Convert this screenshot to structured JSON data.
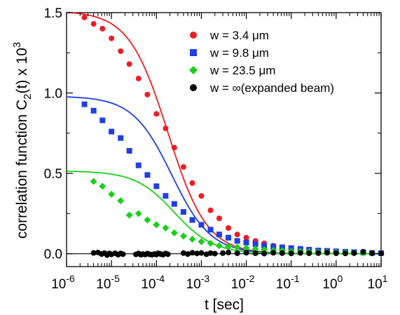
{
  "chart_data": {
    "type": "scatter",
    "xlabel": "t [sec]",
    "ylabel": "correlation function C",
    "ylabel_sub": "2",
    "ylabel_tail": "(t) x 10",
    "ylabel_sup": "3",
    "xscale": "log",
    "xlim": [
      1e-06,
      10
    ],
    "ylim": [
      -0.08,
      1.5
    ],
    "xticks": [
      {
        "value": 1e-06,
        "base": "10",
        "exp": "-6"
      },
      {
        "value": 1e-05,
        "base": "10",
        "exp": "-5"
      },
      {
        "value": 0.0001,
        "base": "10",
        "exp": "-4"
      },
      {
        "value": 0.001,
        "base": "10",
        "exp": "-3"
      },
      {
        "value": 0.01,
        "base": "10",
        "exp": "-2"
      },
      {
        "value": 0.1,
        "base": "10",
        "exp": "-1"
      },
      {
        "value": 1,
        "base": "10",
        "exp": "0"
      },
      {
        "value": 10,
        "base": "10",
        "exp": "1"
      }
    ],
    "yticks": [
      {
        "value": 0.0,
        "label": "0.0"
      },
      {
        "value": 0.5,
        "label": "0.5"
      },
      {
        "value": 1.0,
        "label": "1.0"
      },
      {
        "value": 1.5,
        "label": "1.5"
      }
    ],
    "legend_position": "top-right",
    "grid": false,
    "zero_line": true,
    "series": [
      {
        "name": "w = 3.4 μm",
        "color": "#ee1c24",
        "marker": "circle",
        "fit": {
          "A": 1.51,
          "tau": 0.00018
        },
        "points": [
          [
            2.5e-06,
            1.47
          ],
          [
            4e-06,
            1.43
          ],
          [
            6.3e-06,
            1.4
          ],
          [
            1e-05,
            1.34
          ],
          [
            1.6e-05,
            1.26
          ],
          [
            2.5e-05,
            1.18
          ],
          [
            4e-05,
            1.09
          ],
          [
            6.3e-05,
            0.99
          ],
          [
            0.0001,
            0.87
          ],
          [
            0.00016,
            0.78
          ],
          [
            0.00025,
            0.66
          ],
          [
            0.0004,
            0.54
          ],
          [
            0.00063,
            0.44
          ],
          [
            0.001,
            0.36
          ],
          [
            0.0016,
            0.27
          ],
          [
            0.0025,
            0.22
          ],
          [
            0.004,
            0.16
          ],
          [
            0.0063,
            0.12
          ],
          [
            0.01,
            0.1
          ],
          [
            0.016,
            0.08
          ],
          [
            0.025,
            0.065
          ],
          [
            0.04,
            0.05
          ],
          [
            0.063,
            0.04
          ],
          [
            0.1,
            0.035
          ],
          [
            0.16,
            0.03
          ],
          [
            0.25,
            0.025
          ],
          [
            0.4,
            0.02
          ],
          [
            0.63,
            0.018
          ],
          [
            1.0,
            0.015
          ],
          [
            1.6,
            0.012
          ],
          [
            2.5,
            0.01
          ],
          [
            4.0,
            0.008
          ],
          [
            6.3,
            0.005
          ],
          [
            10,
            0.003
          ]
        ]
      },
      {
        "name": "w = 9.8 μm",
        "color": "#1f3fe0",
        "marker": "square",
        "fit": {
          "A": 0.98,
          "tau": 0.00022
        },
        "points": [
          [
            2.5e-06,
            0.93
          ],
          [
            4e-06,
            0.89
          ],
          [
            6.3e-06,
            0.83
          ],
          [
            1e-05,
            0.76
          ],
          [
            1.6e-05,
            0.72
          ],
          [
            2.5e-05,
            0.64
          ],
          [
            4e-05,
            0.55
          ],
          [
            6.3e-05,
            0.49
          ],
          [
            0.0001,
            0.42
          ],
          [
            0.00016,
            0.36
          ],
          [
            0.00025,
            0.31
          ],
          [
            0.0004,
            0.26
          ],
          [
            0.00063,
            0.21
          ],
          [
            0.001,
            0.18
          ],
          [
            0.0016,
            0.15
          ],
          [
            0.0025,
            0.12
          ],
          [
            0.004,
            0.1
          ],
          [
            0.0063,
            0.08
          ],
          [
            0.01,
            0.07
          ],
          [
            0.016,
            0.06
          ],
          [
            0.025,
            0.05
          ],
          [
            0.04,
            0.045
          ],
          [
            0.063,
            0.04
          ],
          [
            0.1,
            0.035
          ],
          [
            0.16,
            0.03
          ],
          [
            0.25,
            0.025
          ],
          [
            0.4,
            0.02
          ],
          [
            0.63,
            0.018
          ],
          [
            1.0,
            0.015
          ],
          [
            1.6,
            0.012
          ],
          [
            2.5,
            0.01
          ],
          [
            4.0,
            0.008
          ],
          [
            6.3,
            0.005
          ],
          [
            10,
            0.004
          ]
        ]
      },
      {
        "name": "w = 23.5 μm",
        "color": "#19d019",
        "marker": "diamond",
        "fit": {
          "A": 0.515,
          "tau": 0.00025
        },
        "points": [
          [
            4e-06,
            0.45
          ],
          [
            6.3e-06,
            0.42
          ],
          [
            1e-05,
            0.37
          ],
          [
            1.6e-05,
            0.33
          ],
          [
            2.5e-05,
            0.24
          ],
          [
            4e-05,
            0.25
          ],
          [
            6.3e-05,
            0.21
          ],
          [
            0.0001,
            0.18
          ],
          [
            0.00016,
            0.16
          ],
          [
            0.00025,
            0.13
          ],
          [
            0.0004,
            0.11
          ],
          [
            0.00063,
            0.09
          ],
          [
            0.001,
            0.075
          ],
          [
            0.0016,
            0.065
          ],
          [
            0.0025,
            0.05
          ],
          [
            0.004,
            0.045
          ],
          [
            0.0063,
            0.04
          ],
          [
            0.01,
            0.035
          ],
          [
            0.016,
            0.03
          ],
          [
            0.025,
            0.025
          ],
          [
            0.04,
            0.02
          ],
          [
            0.063,
            0.02
          ],
          [
            0.1,
            0.015
          ],
          [
            0.16,
            0.015
          ],
          [
            0.25,
            0.012
          ],
          [
            0.4,
            0.01
          ],
          [
            0.63,
            0.01
          ],
          [
            1.0,
            0.008
          ],
          [
            1.6,
            0.007
          ],
          [
            2.5,
            0.006
          ],
          [
            4.0,
            0.005
          ],
          [
            6.3,
            0.004
          ],
          [
            10,
            0.002
          ]
        ]
      },
      {
        "name": "w = ∞(expanded beam)",
        "color": "#000000",
        "marker": "circle",
        "fit": null,
        "points": [
          [
            4e-06,
            0.005
          ],
          [
            5e-06,
            0.008
          ],
          [
            6e-06,
            -0.002
          ],
          [
            7e-06,
            0.004
          ],
          [
            8e-06,
            -0.008
          ],
          [
            9e-06,
            0.002
          ],
          [
            1e-05,
            -0.004
          ],
          [
            1.2e-05,
            0.003
          ],
          [
            1.4e-05,
            -0.006
          ],
          [
            1.6e-05,
            0.002
          ],
          [
            1.8e-05,
            -0.003
          ],
          [
            3.5e-05,
            -0.004
          ],
          [
            4e-05,
            0.002
          ],
          [
            4.5e-05,
            -0.006
          ],
          [
            5e-05,
            -0.002
          ],
          [
            5.6e-05,
            -0.005
          ],
          [
            6.3e-05,
            0.001
          ],
          [
            7.1e-05,
            -0.004
          ],
          [
            8e-05,
            -0.006
          ],
          [
            9e-05,
            -0.002
          ],
          [
            0.0001,
            -0.005
          ],
          [
            0.00011,
            0.003
          ],
          [
            0.000125,
            -0.002
          ],
          [
            0.00014,
            -0.006
          ],
          [
            0.00016,
            0.002
          ],
          [
            0.00018,
            -0.003
          ],
          [
            0.0004,
            0.004
          ],
          [
            0.0005,
            -0.002
          ],
          [
            0.00063,
            0.006
          ],
          [
            0.0008,
            0.002
          ],
          [
            0.001,
            0.005
          ],
          [
            0.0013,
            -0.003
          ],
          [
            0.0016,
            0.004
          ],
          [
            0.002,
            0.001
          ],
          [
            0.003,
            0.004
          ],
          [
            0.004,
            0.008
          ],
          [
            0.0063,
            0.003
          ],
          [
            0.01,
            0.006
          ],
          [
            0.016,
            0.003
          ],
          [
            0.025,
            0.001
          ],
          [
            0.04,
            0.006
          ],
          [
            0.063,
            0.004
          ],
          [
            0.1,
            0.002
          ],
          [
            0.16,
            0.005
          ],
          [
            0.25,
            0.003
          ],
          [
            0.4,
            0.004
          ],
          [
            0.63,
            0.006
          ],
          [
            1.0,
            0.003
          ],
          [
            1.6,
            0.002
          ],
          [
            2.5,
            0.004
          ],
          [
            4.0,
            0.012
          ],
          [
            6.3,
            0.003
          ],
          [
            10,
            0.002
          ]
        ]
      }
    ]
  }
}
